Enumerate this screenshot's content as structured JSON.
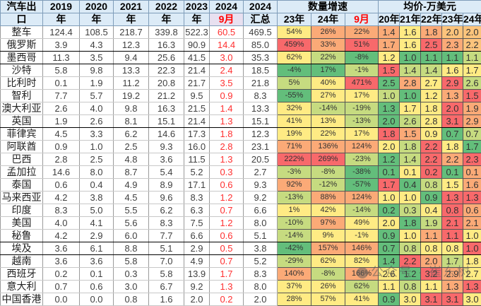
{
  "header": {
    "row1": [
      "汽车出",
      "2019",
      "2020",
      "2021",
      "2022",
      "2023",
      "2024",
      "2024",
      "数量增速",
      "均价-万美元"
    ],
    "row2": [
      "口",
      "年",
      "年",
      "年",
      "年",
      "年",
      "9月",
      "汇总",
      "23年",
      "24年",
      "9月",
      "20年",
      "21年",
      "22年",
      "23年",
      "24年"
    ]
  },
  "colors": {
    "red": "#f8696b",
    "orange": "#fbaa77",
    "yellow": "#ffeb84",
    "lightgreen": "#c6db80",
    "green": "#63be7b",
    "header_bg": "#dcebf7",
    "month_text": "#ff0000"
  },
  "rows": [
    {
      "name": "整车",
      "y2019": "124.4",
      "y2020": "108.5",
      "y2021": "218.7",
      "y2022": "339.8",
      "y2023": "522.3",
      "m9": "60.5",
      "sum2024": "469.5",
      "g23": "54%",
      "g24": "26%",
      "g9": "22%",
      "p20": "1.4",
      "p21": "1.6",
      "p22": "1.8",
      "p23": "2.0",
      "p24": "2.0"
    },
    {
      "name": "俄罗斯",
      "y2019": "3.9",
      "y2020": "4.3",
      "y2021": "12.3",
      "y2022": "16.3",
      "y2023": "90.9",
      "m9": "14.4",
      "sum2024": "85.0",
      "g23": "459%",
      "g24": "33%",
      "g9": "51%",
      "p20": "1.7",
      "p21": "1.6",
      "p22": "2.5",
      "p23": "2.3",
      "p24": "2.2"
    },
    {
      "name": "墨西哥",
      "y2019": "11.3",
      "y2020": "3.5",
      "y2021": "9.4",
      "y2022": "25.6",
      "y2023": "41.5",
      "m9": "3.0",
      "sum2024": "35.3",
      "g23": "62%",
      "g24": "22%",
      "g9": "-8%",
      "p20": "1.2",
      "p21": "1.0",
      "p22": "1.1",
      "p23": "1.1",
      "p24": "1.1"
    },
    {
      "name": "沙特",
      "y2019": "5.8",
      "y2020": "9.8",
      "y2021": "13.3",
      "y2022": "22.3",
      "y2023": "21.4",
      "m9": "2.4",
      "sum2024": "18.5",
      "g23": "-4%",
      "g24": "17%",
      "g9": "-1%",
      "p20": "1.5",
      "p21": "1.4",
      "p22": "1.4",
      "p23": "1.6",
      "p24": "1.7"
    },
    {
      "name": "比利时",
      "y2019": "0.1",
      "y2020": "1.9",
      "y2021": "11.2",
      "y2022": "20.8",
      "y2023": "21.7",
      "m9": "3.5",
      "sum2024": "21.8",
      "g23": "5%",
      "g24": "40%",
      "g9": "471%",
      "p20": "2.5",
      "p21": "2.8",
      "p22": "2.7",
      "p23": "2.9",
      "p24": "2.6"
    },
    {
      "name": "智利",
      "y2019": "7.7",
      "y2020": "5.7",
      "y2021": "19.2",
      "y2022": "21.2",
      "y2023": "9.5",
      "m9": "0.9",
      "sum2024": "8.3",
      "g23": "-55%",
      "g24": "27%",
      "g9": "17%",
      "p20": "1.0",
      "p21": "1.0",
      "p22": "1.2",
      "p23": "1.3",
      "p24": "1.5"
    },
    {
      "name": "澳大利亚",
      "y2019": "2.6",
      "y2020": "4.0",
      "y2021": "9.8",
      "y2022": "16.3",
      "y2023": "21.5",
      "m9": "1.4",
      "sum2024": "13.3",
      "g23": "32%",
      "g24": "-14%",
      "g9": "-19%",
      "p20": "1.3",
      "p21": "1.7",
      "p22": "1.8",
      "p23": "2.0",
      "p24": "1.9"
    },
    {
      "name": "英国",
      "y2019": "1.9",
      "y2020": "2.6",
      "y2021": "8.1",
      "y2022": "15.1",
      "y2023": "21.4",
      "m9": "1.3",
      "sum2024": "15.1",
      "g23": "41%",
      "g24": "13%",
      "g9": "-13%",
      "p20": "2.0",
      "p21": "2.6",
      "p22": "2.8",
      "p23": "3.1",
      "p24": "2.9"
    },
    {
      "name": "菲律宾",
      "y2019": "4.5",
      "y2020": "3.3",
      "y2021": "6.2",
      "y2022": "14.6",
      "y2023": "17.3",
      "m9": "1.8",
      "sum2024": "12.3",
      "g23": "19%",
      "g24": "22%",
      "g9": "17%",
      "p20": "1.8",
      "p21": "1.5",
      "p22": "0.9",
      "p23": "0.7",
      "p24": "0.7"
    },
    {
      "name": "阿联酋",
      "y2019": "0.9",
      "y2020": "1.0",
      "y2021": "2.5",
      "y2022": "9.3",
      "y2023": "16.0",
      "m9": "2.8",
      "sum2024": "23.1",
      "g23": "71%",
      "g24": "136%",
      "g9": "124%",
      "p20": "2.0",
      "p21": "1.8",
      "p22": "2.2",
      "p23": "1.8",
      "p24": "1.7"
    },
    {
      "name": "巴西",
      "y2019": "2.8",
      "y2020": "2.5",
      "y2021": "4.8",
      "y2022": "3.6",
      "y2023": "11.5",
      "m9": "1.3",
      "sum2024": "20.5",
      "g23": "222%",
      "g24": "269%",
      "g9": "-23%",
      "p20": "1.2",
      "p21": "1.4",
      "p22": "2.2",
      "p23": "2.2",
      "p24": "2.3"
    },
    {
      "name": "孟加拉",
      "y2019": "14.6",
      "y2020": "8.0",
      "y2021": "8.7",
      "y2022": "5.4",
      "y2023": "5.2",
      "m9": "0.3",
      "sum2024": "2.7",
      "g23": "-3%",
      "g24": "-8%",
      "g9": "-38%",
      "p20": "0.1",
      "p21": "0.1",
      "p22": "0.2",
      "p23": "0.1",
      "p24": "0.1"
    },
    {
      "name": "泰国",
      "y2019": "0.6",
      "y2020": "0.4",
      "y2021": "4.9",
      "y2022": "8.9",
      "y2023": "17.1",
      "m9": "0.6",
      "sum2024": "9.3",
      "g23": "92%",
      "g24": "-12%",
      "g9": "-57%",
      "p20": "1.7",
      "p21": "0.4",
      "p22": "0.8",
      "p23": "1.5",
      "p24": "1.6"
    },
    {
      "name": "马来西亚",
      "y2019": "4.2",
      "y2020": "3.8",
      "y2021": "4.5",
      "y2022": "9.6",
      "y2023": "8.3",
      "m9": "1.2",
      "sum2024": "9.2",
      "g23": "-13%",
      "g24": "88%",
      "g9": "124%",
      "p20": "1.0",
      "p21": "1.0",
      "p22": "0.9",
      "p23": "1.3",
      "p24": "1.3"
    },
    {
      "name": "印度",
      "y2019": "8.3",
      "y2020": "5.0",
      "y2021": "5.5",
      "y2022": "6.2",
      "y2023": "6.3",
      "m9": "0.7",
      "sum2024": "6.6",
      "g23": "1%",
      "g24": "42%",
      "g9": "-14%",
      "p20": "0.2",
      "p21": "0.3",
      "p22": "0.4",
      "p23": "0.8",
      "p24": "0.6"
    },
    {
      "name": "美国",
      "y2019": "4.0",
      "y2020": "4.1",
      "y2021": "5.6",
      "y2022": "8.3",
      "y2023": "7.5",
      "m9": "1.2",
      "sum2024": "8.0",
      "g23": "-10%",
      "g24": "97%",
      "g9": "49%",
      "p20": "2.0",
      "p21": "1.8",
      "p22": "1.9",
      "p23": "2.1",
      "p24": "2.1"
    },
    {
      "name": "秘鲁",
      "y2019": "4.2",
      "y2020": "2.9",
      "y2021": "6.0",
      "y2022": "7.7",
      "y2023": "6.6",
      "m9": "0.6",
      "sum2024": "5.1",
      "g23": "-14%",
      "g24": "9%",
      "g9": "-1%",
      "p20": "0.9",
      "p21": "1.0",
      "p22": "1.1",
      "p23": "1.1",
      "p24": "1.0"
    },
    {
      "name": "埃及",
      "y2019": "3.6",
      "y2020": "6.1",
      "y2021": "8.8",
      "y2022": "5.1",
      "y2023": "2.9",
      "m9": "0.5",
      "sum2024": "3.8",
      "g23": "-42%",
      "g24": "157%",
      "g9": "146%",
      "p20": "0.7",
      "p21": "0.8",
      "p22": "0.8",
      "p23": "0.8",
      "p24": "1.0"
    },
    {
      "name": "越南",
      "y2019": "3.6",
      "y2020": "3.6",
      "y2021": "5.8",
      "y2022": "7.0",
      "y2023": "4.9",
      "m9": "0.7",
      "sum2024": "5.2",
      "g23": "-29%",
      "g24": "62%",
      "g9": "82%",
      "p20": "1.4",
      "p21": "2.2",
      "p22": "2.0",
      "p23": "1.7",
      "p24": "1.8"
    },
    {
      "name": "西班牙",
      "y2019": "0.2",
      "y2020": "0.1",
      "y2021": "0.3",
      "y2022": "5.8",
      "y2023": "13.9",
      "m9": "1.7",
      "sum2024": "8.3",
      "g23": "140%",
      "g24": "-8%",
      "g9": "166%",
      "p20": "2.6",
      "p21": "1.2",
      "p22": "3.2",
      "p23": "2.9",
      "p24": "2.7"
    },
    {
      "name": "意大利",
      "y2019": "0.7",
      "y2020": "0.6",
      "y2021": "3.0",
      "y2022": "6.7",
      "y2023": "9.2",
      "m9": "1.3",
      "sum2024": "8.0",
      "g23": "37%",
      "g24": "26%",
      "g9": "62%",
      "p20": "1.1",
      "p21": "0.8",
      "p22": "1.1",
      "p23": "1.3",
      "p24": "1.3"
    },
    {
      "name": "中国香港",
      "y2019": "0.0",
      "y2020": "0.0",
      "y2021": "0.8",
      "y2022": "1.6",
      "y2023": "2.0",
      "m9": "0.2",
      "sum2024": "2.0",
      "g23": "28%",
      "g24": "57%",
      "g9": "41%",
      "p20": "0.9",
      "p21": "3.0",
      "p22": "3.1",
      "p23": "3.1",
      "p24": "3.0"
    }
  ],
  "cell_colors": [
    [
      "yellow",
      "orange",
      "orange",
      "orange",
      "yellow",
      "orange",
      "lorange",
      "lorange"
    ],
    [
      "red",
      "orange",
      "red",
      "orange",
      "yellow",
      "red",
      "orange",
      "lorange"
    ],
    [
      "yellow",
      "lightgreen",
      "green",
      "yellow",
      "green",
      "green",
      "green",
      "lightgreen"
    ],
    [
      "green",
      "green",
      "lightgreen",
      "red",
      "lightgreen",
      "lightgreen",
      "yellow",
      "yellow"
    ],
    [
      "lightgreen",
      "yellow",
      "red",
      "green",
      "orange",
      "yellow",
      "red",
      "lightgreen"
    ],
    [
      "green",
      "yellow",
      "yellow",
      "lightgreen",
      "green",
      "yellow",
      "orange",
      "red"
    ],
    [
      "yellow",
      "lightgreen",
      "lightgreen",
      "green",
      "yellow",
      "yellow",
      "red",
      "orange"
    ],
    [
      "yellow",
      "yellow",
      "lightgreen",
      "green",
      "lightgreen",
      "yellow",
      "red",
      "orange"
    ],
    [
      "yellow",
      "yellow",
      "yellow",
      "red",
      "orange",
      "yellow",
      "green",
      "lightgreen"
    ],
    [
      "orange",
      "orange",
      "orange",
      "yellow",
      "lightgreen",
      "red",
      "yellow",
      "green"
    ],
    [
      "red",
      "red",
      "lightgreen",
      "green",
      "lightgreen",
      "red",
      "orange",
      "red"
    ],
    [
      "lightgreen",
      "lightgreen",
      "green",
      "green",
      "yellow",
      "red",
      "green",
      "orange"
    ],
    [
      "orange",
      "lightgreen",
      "green",
      "red",
      "green",
      "lightgreen",
      "yellow",
      "orange"
    ],
    [
      "lightgreen",
      "orange",
      "orange",
      "yellow",
      "yellow",
      "green",
      "red",
      "red"
    ],
    [
      "yellow",
      "yellow",
      "lightgreen",
      "green",
      "lightgreen",
      "yellow",
      "red",
      "orange"
    ],
    [
      "lightgreen",
      "orange",
      "yellow",
      "yellow",
      "green",
      "lightgreen",
      "red",
      "orange"
    ],
    [
      "lightgreen",
      "yellow",
      "yellow",
      "green",
      "yellow",
      "orange",
      "red",
      "yellow"
    ],
    [
      "green",
      "orange",
      "orange",
      "green",
      "lightgreen",
      "yellow",
      "yellow",
      "red"
    ],
    [
      "lightgreen",
      "yellow",
      "yellow",
      "green",
      "red",
      "orange",
      "lightgreen",
      "yellow"
    ],
    [
      "orange",
      "lightgreen",
      "orange",
      "yellow",
      "green",
      "red",
      "orange",
      "yellow"
    ],
    [
      "yellow",
      "yellow",
      "lightgreen",
      "yellow",
      "lightgreen",
      "yellow",
      "orange",
      "red"
    ],
    [
      "yellow",
      "yellow",
      "yellow",
      "green",
      "yellow",
      "red",
      "red",
      "yellow"
    ]
  ],
  "watermark": "公众号 · 崔东树"
}
